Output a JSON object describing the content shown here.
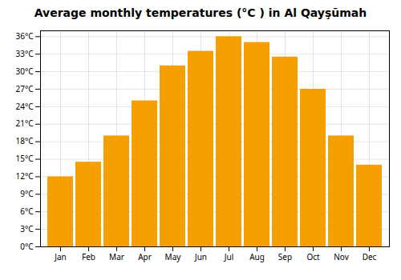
{
  "chart_data": {
    "type": "bar",
    "title": "Average monthly temperatures (°C ) in Al Qayşūmah",
    "categories": [
      "Jan",
      "Feb",
      "Mar",
      "Apr",
      "May",
      "Jun",
      "Jul",
      "Aug",
      "Sep",
      "Oct",
      "Nov",
      "Dec"
    ],
    "values": [
      12,
      14.5,
      19,
      25,
      31,
      33.5,
      36,
      35,
      32.5,
      27,
      19,
      14
    ],
    "color": "#F5A000",
    "ylim": [
      0,
      37
    ],
    "yticks": [
      {
        "value": 0,
        "label": "0°C"
      },
      {
        "value": 3,
        "label": "3°C"
      },
      {
        "value": 6,
        "label": "6°C"
      },
      {
        "value": 9,
        "label": "9°C"
      },
      {
        "value": 12,
        "label": "12°C"
      },
      {
        "value": 15,
        "label": "15°C"
      },
      {
        "value": 18,
        "label": "18°C"
      },
      {
        "value": 21,
        "label": "21°C"
      },
      {
        "value": 24,
        "label": "24°C"
      },
      {
        "value": 27,
        "label": "27°C"
      },
      {
        "value": 30,
        "label": "30°C"
      },
      {
        "value": 33,
        "label": "33°C"
      },
      {
        "value": 36,
        "label": "36°C"
      }
    ],
    "grid": true
  }
}
